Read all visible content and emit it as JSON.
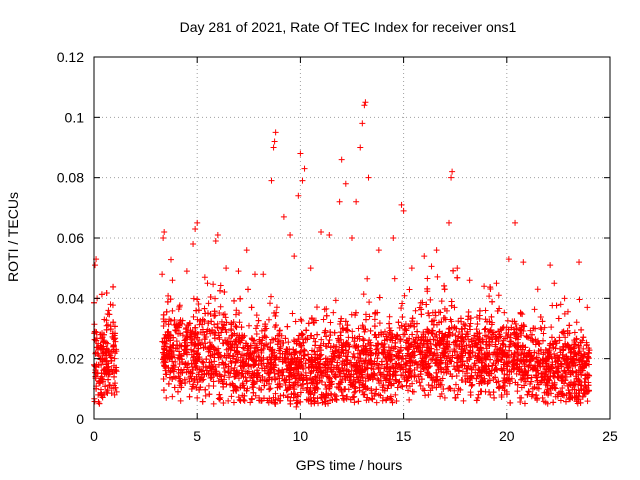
{
  "chart_data": {
    "type": "scatter",
    "title": "Day 281 of 2021, Rate Of TEC Index for receiver ons1",
    "xlabel": "GPS time / hours",
    "ylabel": "ROTI / TECUs",
    "xlim": [
      0,
      25
    ],
    "ylim": [
      0,
      0.12
    ],
    "xticks": [
      0,
      5,
      10,
      15,
      20,
      25
    ],
    "yticks": [
      0,
      0.02,
      0.04,
      0.06,
      0.08,
      0.1,
      0.12
    ],
    "ytick_labels": [
      "0",
      "0.02",
      "0.04",
      "0.06",
      "0.08",
      "0.1",
      "0.12"
    ],
    "grid": true,
    "marker": "+",
    "color": "#ff0000",
    "data_gap_hours": [
      1.1,
      3.3
    ],
    "series": [
      {
        "values": [
          [
            0.0,
            0.018
          ],
          [
            0.05,
            0.051
          ],
          [
            0.1,
            0.053
          ],
          [
            0.15,
            0.04
          ],
          [
            0.2,
            0.025
          ],
          [
            0.3,
            0.012
          ],
          [
            0.5,
            0.033
          ],
          [
            0.7,
            0.036
          ],
          [
            0.8,
            0.038
          ],
          [
            1.0,
            0.02
          ],
          [
            1.1,
            0.009
          ],
          [
            3.3,
            0.048
          ],
          [
            3.35,
            0.06
          ],
          [
            3.4,
            0.062
          ],
          [
            3.8,
            0.046
          ],
          [
            4.5,
            0.049
          ],
          [
            4.8,
            0.058
          ],
          [
            4.9,
            0.063
          ],
          [
            5.0,
            0.065
          ],
          [
            5.5,
            0.045
          ],
          [
            5.9,
            0.059
          ],
          [
            6.0,
            0.061
          ],
          [
            6.4,
            0.05
          ],
          [
            7.0,
            0.049
          ],
          [
            7.4,
            0.056
          ],
          [
            7.8,
            0.048
          ],
          [
            8.2,
            0.048
          ],
          [
            8.6,
            0.079
          ],
          [
            8.7,
            0.09
          ],
          [
            8.75,
            0.092
          ],
          [
            8.8,
            0.095
          ],
          [
            9.2,
            0.067
          ],
          [
            9.5,
            0.061
          ],
          [
            9.7,
            0.054
          ],
          [
            9.9,
            0.074
          ],
          [
            10.0,
            0.088
          ],
          [
            10.1,
            0.079
          ],
          [
            10.2,
            0.083
          ],
          [
            10.5,
            0.05
          ],
          [
            11.0,
            0.062
          ],
          [
            11.4,
            0.061
          ],
          [
            11.9,
            0.072
          ],
          [
            12.0,
            0.086
          ],
          [
            12.2,
            0.078
          ],
          [
            12.5,
            0.06
          ],
          [
            12.7,
            0.072
          ],
          [
            12.9,
            0.09
          ],
          [
            13.0,
            0.098
          ],
          [
            13.1,
            0.104
          ],
          [
            13.15,
            0.105
          ],
          [
            13.3,
            0.08
          ],
          [
            13.8,
            0.056
          ],
          [
            14.5,
            0.06
          ],
          [
            14.9,
            0.071
          ],
          [
            15.0,
            0.069
          ],
          [
            15.4,
            0.05
          ],
          [
            16.0,
            0.054
          ],
          [
            16.6,
            0.056
          ],
          [
            17.2,
            0.065
          ],
          [
            17.3,
            0.08
          ],
          [
            17.35,
            0.082
          ],
          [
            17.6,
            0.05
          ],
          [
            18.2,
            0.046
          ],
          [
            18.9,
            0.044
          ],
          [
            19.5,
            0.045
          ],
          [
            20.1,
            0.053
          ],
          [
            20.4,
            0.065
          ],
          [
            20.8,
            0.052
          ],
          [
            21.5,
            0.043
          ],
          [
            22.1,
            0.051
          ],
          [
            22.3,
            0.045
          ],
          [
            22.8,
            0.04
          ],
          [
            23.5,
            0.052
          ],
          [
            23.9,
            0.037
          ],
          [
            0.2,
            0.008
          ],
          [
            0.6,
            0.009
          ],
          [
            1.0,
            0.008
          ],
          [
            3.5,
            0.007
          ],
          [
            4.2,
            0.006
          ],
          [
            5.0,
            0.007
          ],
          [
            5.8,
            0.005
          ],
          [
            6.5,
            0.006
          ],
          [
            7.3,
            0.006
          ],
          [
            8.0,
            0.007
          ],
          [
            9.0,
            0.006
          ],
          [
            9.8,
            0.004
          ],
          [
            10.4,
            0.006
          ],
          [
            11.0,
            0.007
          ],
          [
            11.5,
            0.008
          ],
          [
            12.0,
            0.009
          ],
          [
            13.0,
            0.009
          ],
          [
            14.0,
            0.007
          ],
          [
            14.6,
            0.008
          ],
          [
            15.5,
            0.009
          ],
          [
            16.2,
            0.008
          ],
          [
            17.0,
            0.007
          ],
          [
            17.9,
            0.006
          ],
          [
            18.6,
            0.007
          ],
          [
            19.2,
            0.008
          ],
          [
            20.0,
            0.009
          ],
          [
            20.7,
            0.007
          ],
          [
            21.4,
            0.007
          ],
          [
            22.0,
            0.008
          ],
          [
            22.7,
            0.008
          ],
          [
            23.3,
            0.007
          ],
          [
            23.9,
            0.009
          ]
        ]
      }
    ]
  }
}
